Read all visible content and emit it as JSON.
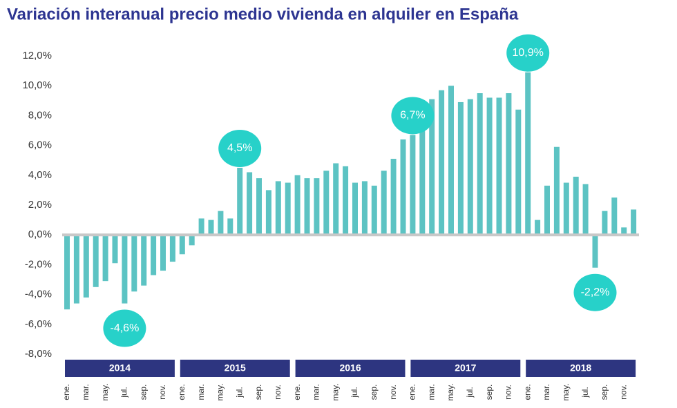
{
  "chart_data": {
    "type": "bar",
    "title": "Variación interanual precio medio vivienda en alquiler en España",
    "years": [
      "2014",
      "2015",
      "2016",
      "2017",
      "2018"
    ],
    "categories": [
      "ene.",
      null,
      "mar.",
      null,
      "may.",
      null,
      "jul.",
      null,
      "sep.",
      null,
      "nov.",
      null,
      "ene.",
      null,
      "mar.",
      null,
      "may.",
      null,
      "jul.",
      null,
      "sep.",
      null,
      "nov.",
      null,
      "ene.",
      null,
      "mar.",
      null,
      "may.",
      null,
      "jul.",
      null,
      "sep.",
      null,
      "nov.",
      null,
      "ene.",
      null,
      "mar.",
      null,
      "may.",
      null,
      "jul.",
      null,
      "sep.",
      null,
      "nov.",
      null,
      "ene.",
      null,
      "mar.",
      null,
      "may.",
      null,
      "jul.",
      null,
      "sep.",
      null,
      "nov.",
      null
    ],
    "values": [
      -5.0,
      -4.6,
      -4.2,
      -3.5,
      -3.1,
      -1.9,
      -4.6,
      -3.8,
      -3.4,
      -2.7,
      -2.4,
      -1.8,
      -1.3,
      -0.7,
      1.1,
      1.0,
      1.6,
      1.1,
      4.5,
      4.2,
      3.8,
      3.0,
      3.6,
      3.5,
      4.0,
      3.8,
      3.8,
      4.3,
      4.8,
      4.6,
      3.5,
      3.6,
      3.3,
      4.3,
      5.1,
      6.4,
      6.7,
      8.6,
      9.1,
      9.7,
      10.0,
      8.9,
      9.1,
      9.5,
      9.2,
      9.2,
      9.5,
      8.4,
      10.9,
      1.0,
      3.3,
      5.9,
      3.5,
      3.9,
      3.4,
      -2.2,
      1.6,
      2.5,
      0.5,
      1.7
    ],
    "value_labels": [
      null,
      null,
      null,
      null,
      null,
      null,
      "-4,6%",
      null,
      null,
      null,
      null,
      null,
      null,
      null,
      null,
      null,
      null,
      null,
      "4,5%",
      null,
      null,
      null,
      null,
      null,
      null,
      null,
      null,
      null,
      null,
      null,
      null,
      null,
      null,
      null,
      null,
      null,
      "6,7%",
      null,
      null,
      null,
      null,
      null,
      null,
      null,
      null,
      null,
      null,
      null,
      "10,9%",
      null,
      null,
      null,
      null,
      null,
      null,
      "-2,2%",
      null,
      null,
      null,
      null
    ],
    "color": "#5cc3c3",
    "ylim": [
      -8,
      12
    ],
    "yticks": [
      {
        "value": -8,
        "label": "-8,0%"
      },
      {
        "value": -6,
        "label": "-6,0%"
      },
      {
        "value": -4,
        "label": "-4,0%"
      },
      {
        "value": -2,
        "label": "-2,0%"
      },
      {
        "value": 0,
        "label": "0,0%"
      },
      {
        "value": 2,
        "label": "2,0%"
      },
      {
        "value": 4,
        "label": "4,0%"
      },
      {
        "value": 6,
        "label": "6,0%"
      },
      {
        "value": 8,
        "label": "8,0%"
      },
      {
        "value": 10,
        "label": "10,0%"
      },
      {
        "value": 12,
        "label": "12,0%"
      }
    ]
  }
}
